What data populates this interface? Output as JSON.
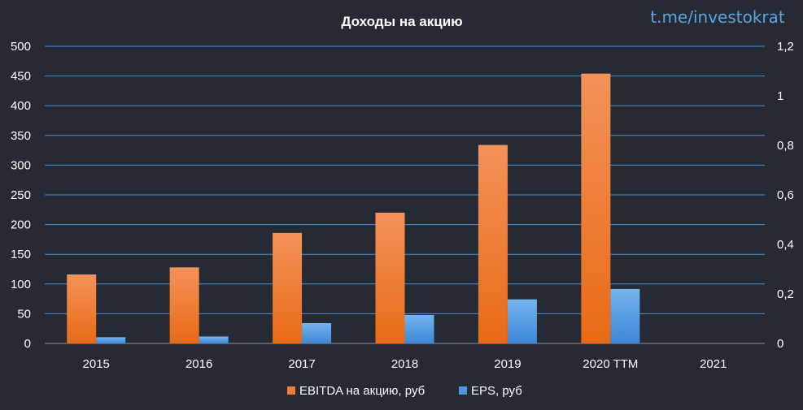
{
  "watermark": "t.me/investokrat",
  "chart_data": {
    "type": "bar",
    "title": "Доходы на акцию",
    "categories": [
      "2015",
      "2016",
      "2017",
      "2018",
      "2019",
      "2020 TTM",
      "2021"
    ],
    "series": [
      {
        "name": "EBITDA на акцию, руб",
        "axis": "left",
        "color": "#f07e32",
        "values": [
          116,
          128,
          186,
          220,
          334,
          454,
          null
        ]
      },
      {
        "name": "EPS, руб",
        "axis": "right",
        "color": "#4f97e0",
        "values": [
          0.025,
          0.028,
          0.082,
          0.115,
          0.178,
          0.22,
          null
        ]
      }
    ],
    "y_left": {
      "min": 0,
      "max": 500,
      "step": 50,
      "ticks": [
        "0",
        "50",
        "100",
        "150",
        "200",
        "250",
        "300",
        "350",
        "400",
        "450",
        "500"
      ]
    },
    "y_right": {
      "min": 0,
      "max": 1.2,
      "step": 0.2,
      "ticks": [
        "0",
        "0,2",
        "0,4",
        "0,6",
        "0,8",
        "1",
        "1,2"
      ]
    },
    "grid": true,
    "legend_position": "bottom"
  }
}
